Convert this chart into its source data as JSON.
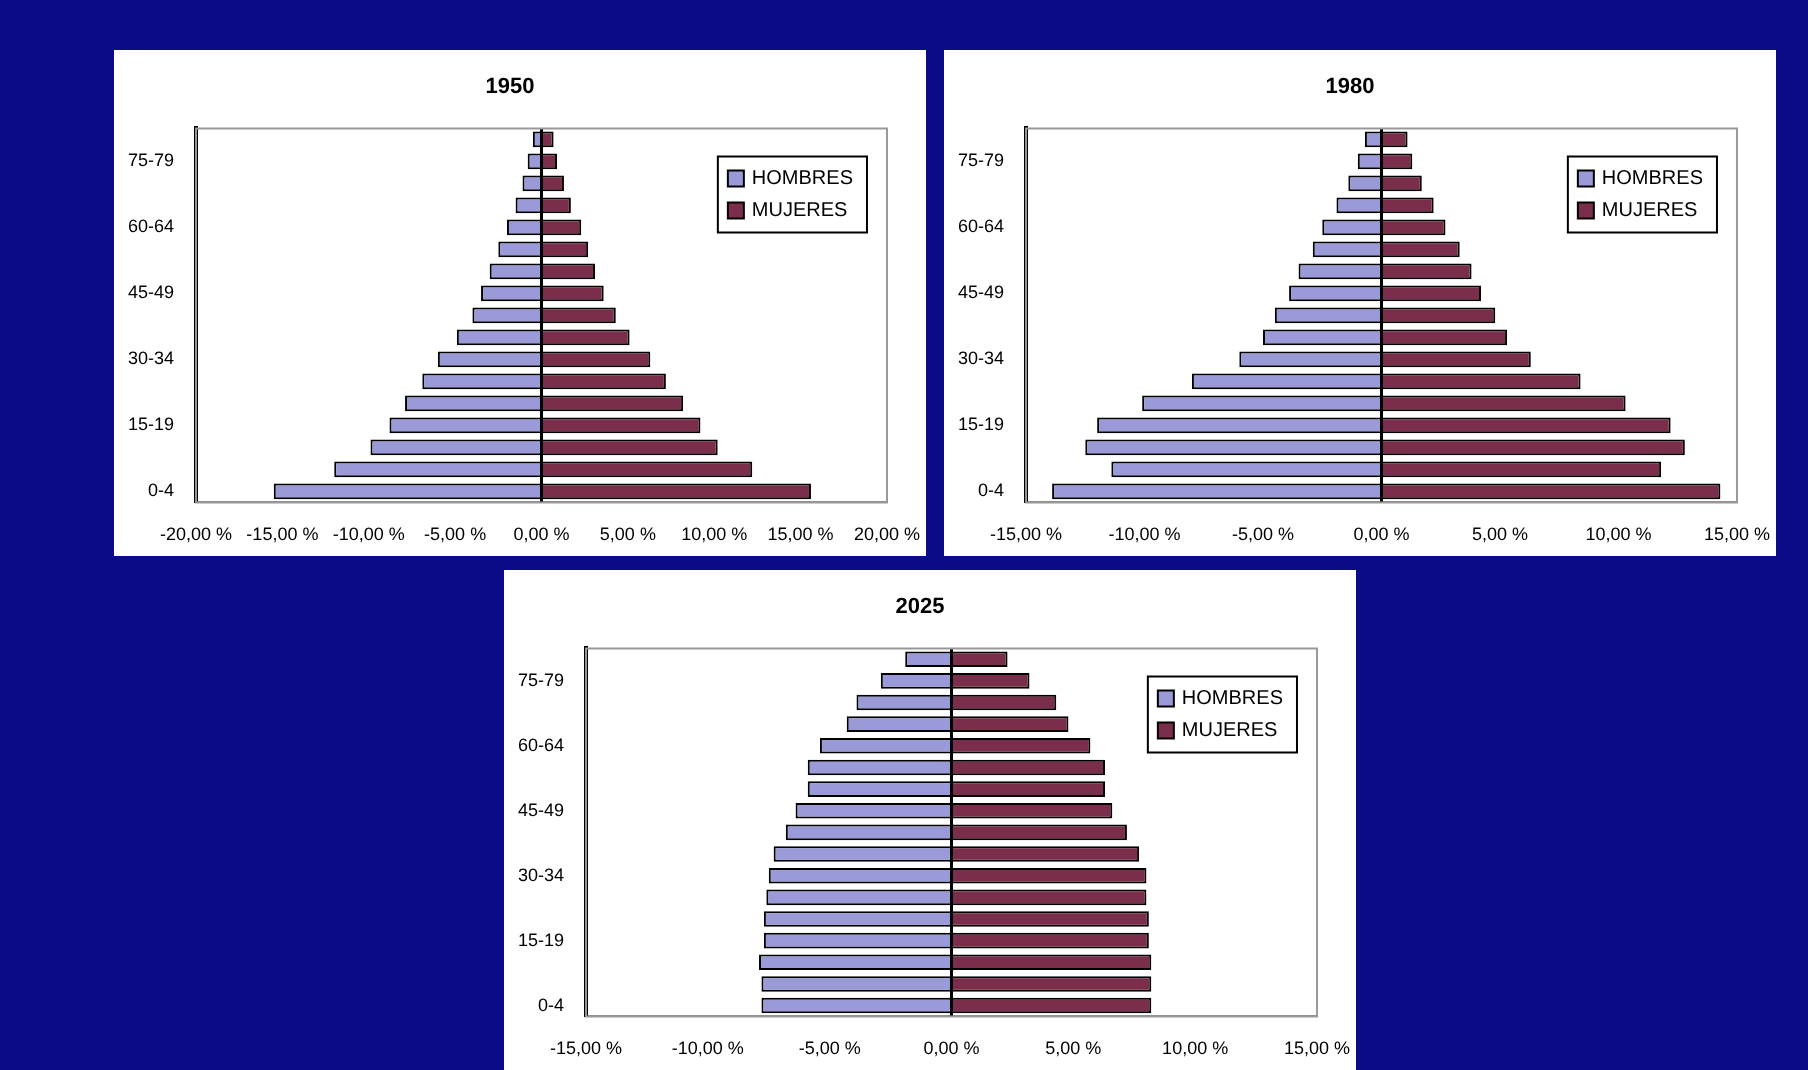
{
  "chart_data": [
    {
      "type": "bar",
      "orientation": "horizontal",
      "stacked": true,
      "title": "1950",
      "legend": "top right",
      "categories": [
        null,
        "75-79",
        null,
        null,
        "60-64",
        null,
        null,
        "45-49",
        null,
        null,
        "30-34",
        null,
        null,
        "15-19",
        null,
        null,
        "0-4"
      ],
      "series": [
        {
          "name": "HOMBRES",
          "color": "#9a9ad8",
          "values": [
            -0.5,
            -0.8,
            -1.1,
            -1.5,
            -2.0,
            -2.5,
            -3.0,
            -3.5,
            -4.0,
            -4.9,
            -6.0,
            -6.9,
            -7.9,
            -8.8,
            -9.9,
            -12.0,
            -15.5
          ]
        },
        {
          "name": "MUJERES",
          "color": "#7a2e4c",
          "values": [
            0.7,
            0.9,
            1.3,
            1.7,
            2.3,
            2.7,
            3.1,
            3.6,
            4.3,
            5.1,
            6.3,
            7.2,
            8.2,
            9.2,
            10.2,
            12.2,
            15.6
          ]
        }
      ],
      "xlim": [
        -20,
        20
      ],
      "xticks": [
        {
          "value": -20,
          "label": "-20,00 %"
        },
        {
          "value": -15,
          "label": "-15,00 %"
        },
        {
          "value": -10,
          "label": "-10,00 %"
        },
        {
          "value": -5,
          "label": "-5,00 %"
        },
        {
          "value": 0,
          "label": "0,00 %"
        },
        {
          "value": 5,
          "label": "5,00 %"
        },
        {
          "value": 10,
          "label": "10,00 %"
        },
        {
          "value": 15,
          "label": "15,00 %"
        },
        {
          "value": 20,
          "label": "20,00 %"
        }
      ]
    },
    {
      "type": "bar",
      "orientation": "horizontal",
      "stacked": true,
      "title": "1980",
      "legend": "top right",
      "categories": [
        null,
        "75-79",
        null,
        null,
        "60-64",
        null,
        null,
        "45-49",
        null,
        null,
        "30-34",
        null,
        null,
        "15-19",
        null,
        null,
        "0-4"
      ],
      "series": [
        {
          "name": "HOMBRES",
          "color": "#9a9ad8",
          "values": [
            -0.7,
            -1.0,
            -1.4,
            -1.9,
            -2.5,
            -2.9,
            -3.5,
            -3.9,
            -4.5,
            -5.0,
            -6.0,
            -8.0,
            -10.1,
            -12.0,
            -12.5,
            -11.4,
            -13.9
          ]
        },
        {
          "name": "MUJERES",
          "color": "#7a2e4c",
          "values": [
            1.1,
            1.3,
            1.7,
            2.2,
            2.7,
            3.3,
            3.8,
            4.2,
            4.8,
            5.3,
            6.3,
            8.4,
            10.3,
            12.2,
            12.8,
            11.8,
            14.3
          ]
        }
      ],
      "xlim": [
        -15,
        15
      ],
      "xticks": [
        {
          "value": -15,
          "label": "-15,00 %"
        },
        {
          "value": -10,
          "label": "-10,00 %"
        },
        {
          "value": -5,
          "label": "-5,00 %"
        },
        {
          "value": 0,
          "label": "0,00 %"
        },
        {
          "value": 5,
          "label": "5,00 %"
        },
        {
          "value": 10,
          "label": "10,00 %"
        },
        {
          "value": 15,
          "label": "15,00 %"
        }
      ]
    },
    {
      "type": "bar",
      "orientation": "horizontal",
      "stacked": true,
      "title": "2025",
      "legend": "top right",
      "categories": [
        null,
        "75-79",
        null,
        null,
        "60-64",
        null,
        null,
        "45-49",
        null,
        null,
        "30-34",
        null,
        null,
        "15-19",
        null,
        null,
        "0-4"
      ],
      "series": [
        {
          "name": "HOMBRES",
          "color": "#9a9ad8",
          "values": [
            -1.9,
            -2.9,
            -3.9,
            -4.3,
            -5.4,
            -5.9,
            -5.9,
            -6.4,
            -6.8,
            -7.3,
            -7.5,
            -7.6,
            -7.7,
            -7.7,
            -7.9,
            -7.8,
            -7.8
          ]
        },
        {
          "name": "MUJERES",
          "color": "#7a2e4c",
          "values": [
            2.3,
            3.2,
            4.3,
            4.8,
            5.7,
            6.3,
            6.3,
            6.6,
            7.2,
            7.7,
            8.0,
            8.0,
            8.1,
            8.1,
            8.2,
            8.2,
            8.2
          ]
        }
      ],
      "xlim": [
        -15,
        15
      ],
      "xticks": [
        {
          "value": -15,
          "label": "-15,00 %"
        },
        {
          "value": -10,
          "label": "-10,00 %"
        },
        {
          "value": -5,
          "label": "-5,00 %"
        },
        {
          "value": 0,
          "label": "0,00 %"
        },
        {
          "value": 5,
          "label": "5,00 %"
        },
        {
          "value": 10,
          "label": "10,00 %"
        },
        {
          "value": 15,
          "label": "15,00 %"
        }
      ]
    }
  ]
}
